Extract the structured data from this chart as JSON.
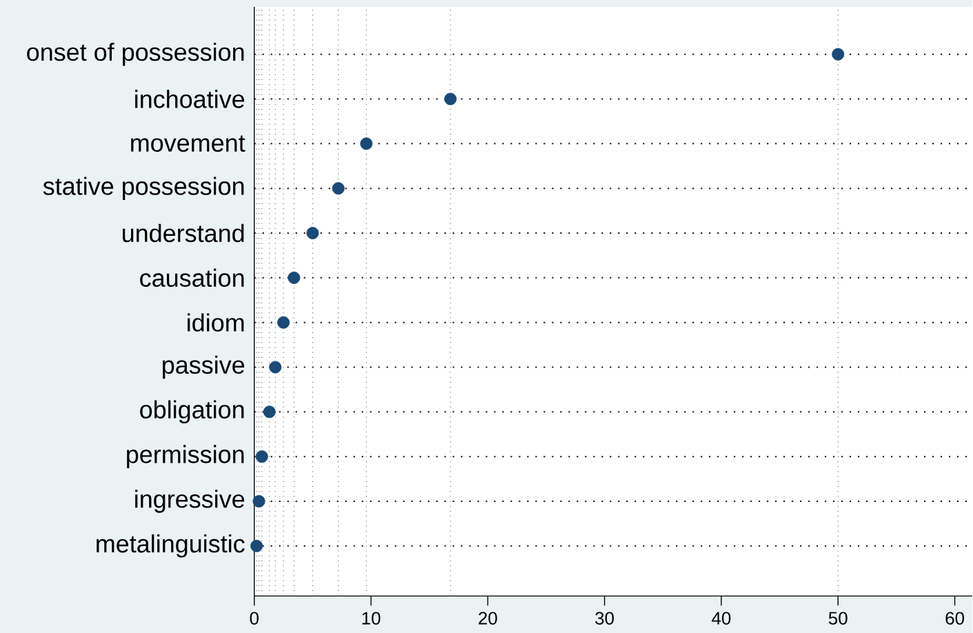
{
  "chart_data": {
    "type": "scatter",
    "orientation": "horizontal",
    "categories": [
      "onset of possession",
      "inchoative",
      "movement",
      "stative possession",
      "understand",
      "causation",
      "idiom",
      "passive",
      "obligation",
      "permission",
      "ingressive",
      "metalinguistic"
    ],
    "values": [
      50.0,
      16.8,
      9.6,
      7.2,
      5.0,
      3.4,
      2.5,
      1.8,
      1.3,
      0.65,
      0.4,
      0.2
    ],
    "color": "#1a4a75",
    "grid": "y",
    "xlim": [
      0,
      61.5
    ],
    "xticks": [
      0,
      10,
      20,
      30,
      40,
      50,
      60
    ],
    "ref_lines": [
      {
        "axis": "x",
        "value": 50.0
      },
      {
        "axis": "x",
        "value": 16.8
      },
      {
        "axis": "x",
        "value": 9.6
      },
      {
        "axis": "x",
        "value": 7.2
      },
      {
        "axis": "x",
        "value": 5.0
      },
      {
        "axis": "x",
        "value": 3.4
      },
      {
        "axis": "x",
        "value": 2.5
      },
      {
        "axis": "x",
        "value": 1.8
      },
      {
        "axis": "x",
        "value": 1.3
      },
      {
        "axis": "x",
        "value": 0.65
      },
      {
        "axis": "x",
        "value": 0.4
      },
      {
        "axis": "x",
        "value": 0.2
      }
    ]
  }
}
